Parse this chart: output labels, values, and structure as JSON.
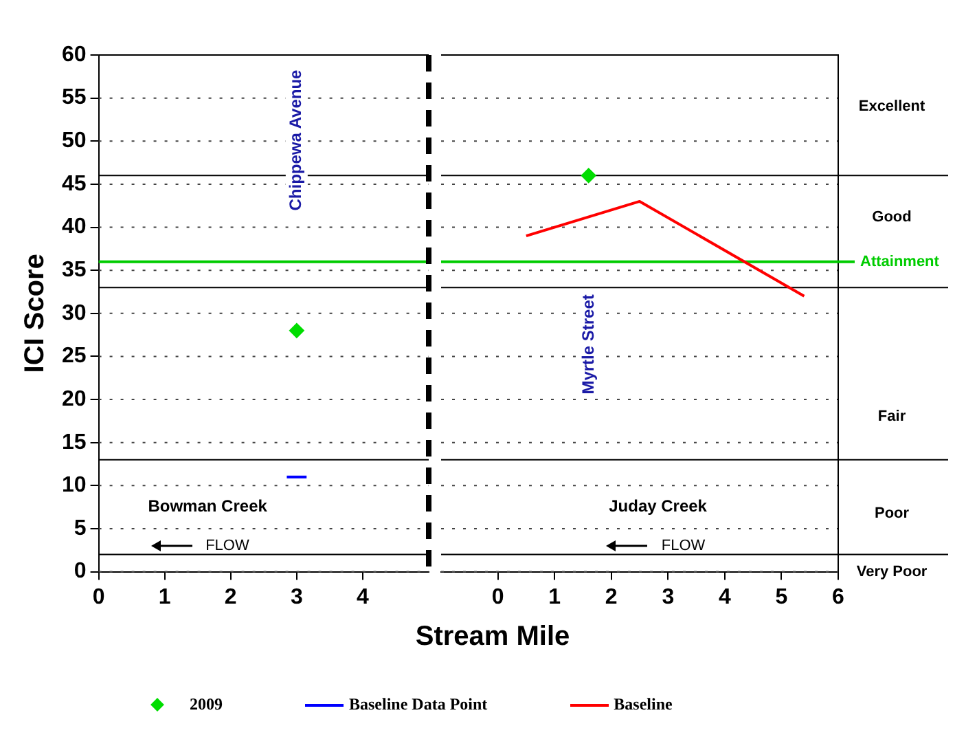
{
  "chart_data": [
    {
      "type": "scatter",
      "xlabel": "Stream Mile",
      "ylabel": "ICI Score",
      "xlim": [
        0,
        5
      ],
      "xticks": [
        0,
        1,
        2,
        3,
        4
      ],
      "ylim": [
        0,
        60
      ],
      "yticks": [
        0,
        5,
        10,
        15,
        20,
        25,
        30,
        35,
        40,
        45,
        50,
        55,
        60
      ],
      "grid": "y",
      "legend": "bottom",
      "series": [
        {
          "name": "2009",
          "color": "#00dd00",
          "marker": "diamond",
          "x": [
            3
          ],
          "values": [
            28
          ]
        },
        {
          "name": "Baseline Data Point",
          "type": "line",
          "color": "#0000ff",
          "marker": "none",
          "x": [
            2.85,
            3.15
          ],
          "values": [
            11,
            11
          ]
        }
      ],
      "ref_lines": [
        {
          "axis": "y",
          "value": 46,
          "color": "#000000"
        },
        {
          "axis": "y",
          "value": 33,
          "color": "#000000"
        },
        {
          "axis": "y",
          "value": 13,
          "color": "#000000"
        },
        {
          "axis": "y",
          "value": 2,
          "color": "#000000"
        },
        {
          "axis": "y",
          "value": 36,
          "color": "#00cc00"
        },
        {
          "axis": "x",
          "value": 5,
          "color": "#000000",
          "line_style": "dashed"
        }
      ],
      "annotations": [
        "Chippewa Avenue",
        "Bowman Creek",
        "FLOW"
      ]
    },
    {
      "type": "scatter",
      "xlim": [
        -1,
        6
      ],
      "xticks": [
        0,
        1,
        2,
        3,
        4,
        5,
        6
      ],
      "ylim": [
        0,
        60
      ],
      "yticks": [
        0,
        5,
        10,
        15,
        20,
        25,
        30,
        35,
        40,
        45,
        50,
        55,
        60
      ],
      "tick_labels": "x",
      "grid": "y",
      "legend": "bottom",
      "series": [
        {
          "name": "2009",
          "color": "#00dd00",
          "marker": "diamond",
          "x": [
            1.6
          ],
          "values": [
            46
          ]
        },
        {
          "name": "Baseline",
          "type": "line",
          "color": "#ff0000",
          "marker": "none",
          "x": [
            0.5,
            2.5,
            5.4
          ],
          "values": [
            39,
            43,
            32
          ]
        }
      ],
      "ref_lines": [
        {
          "axis": "y",
          "value": 46,
          "color": "#000000"
        },
        {
          "axis": "y",
          "value": 33,
          "color": "#000000"
        },
        {
          "axis": "y",
          "value": 13,
          "color": "#000000"
        },
        {
          "axis": "y",
          "value": 2,
          "color": "#000000"
        },
        {
          "axis": "y",
          "value": 36,
          "color": "#00cc00",
          "label": "Attainment"
        }
      ],
      "annotations": [
        "Myrtle Street",
        "Juday Creek",
        "FLOW",
        "Excellent",
        "Good",
        "Fair",
        "Poor",
        "Very Poor"
      ]
    }
  ]
}
